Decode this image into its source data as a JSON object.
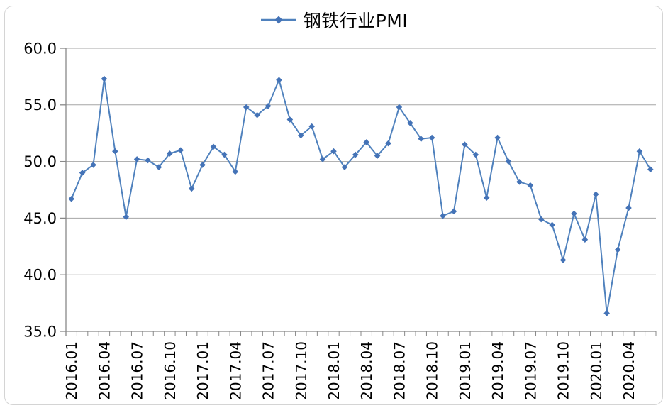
{
  "chart_data": {
    "type": "line",
    "title": "",
    "legend": {
      "label": "钢铁行业PMI",
      "position": "top-center"
    },
    "x": [
      "2016.01",
      "2016.02",
      "2016.03",
      "2016.04",
      "2016.05",
      "2016.06",
      "2016.07",
      "2016.08",
      "2016.09",
      "2016.10",
      "2016.11",
      "2016.12",
      "2017.01",
      "2017.02",
      "2017.03",
      "2017.04",
      "2017.05",
      "2017.06",
      "2017.07",
      "2017.08",
      "2017.09",
      "2017.10",
      "2017.11",
      "2017.12",
      "2018.01",
      "2018.02",
      "2018.03",
      "2018.04",
      "2018.05",
      "2018.06",
      "2018.07",
      "2018.08",
      "2018.09",
      "2018.10",
      "2018.11",
      "2018.12",
      "2019.01",
      "2019.02",
      "2019.03",
      "2019.04",
      "2019.05",
      "2019.06",
      "2019.07",
      "2019.08",
      "2019.09",
      "2019.10",
      "2019.11",
      "2019.12",
      "2020.01",
      "2020.02",
      "2020.03",
      "2020.04",
      "2020.05",
      "2020.06"
    ],
    "series": [
      {
        "name": "钢铁行业PMI",
        "values": [
          46.7,
          49.0,
          49.7,
          57.3,
          50.9,
          45.1,
          50.2,
          50.1,
          49.5,
          50.7,
          51.0,
          47.6,
          49.7,
          51.3,
          50.6,
          49.1,
          54.8,
          54.1,
          54.9,
          57.2,
          53.7,
          52.3,
          53.1,
          50.2,
          50.9,
          49.5,
          50.6,
          51.7,
          50.5,
          51.6,
          54.8,
          53.4,
          52.0,
          52.1,
          45.2,
          45.6,
          51.5,
          50.6,
          46.8,
          52.1,
          50.0,
          48.2,
          47.9,
          44.9,
          44.4,
          41.3,
          45.4,
          43.1,
          47.1,
          36.6,
          42.2,
          45.9,
          50.9,
          49.3
        ]
      }
    ],
    "ylim": [
      35.0,
      60.0
    ],
    "y_ticks": [
      35.0,
      40.0,
      45.0,
      50.0,
      55.0,
      60.0
    ],
    "y_tick_labels": [
      "35.0",
      "40.0",
      "45.0",
      "50.0",
      "55.0",
      "60.0"
    ],
    "x_label_every": 3,
    "x_label_rotation": -90,
    "grid": "horizontal-only",
    "marker": "diamond",
    "colors": {
      "series": "#4F81BD",
      "marker": "#4473B7",
      "gridline": "#A6A6A6",
      "axis": "#898989",
      "text": "#000000",
      "chart_border": "#D4D4D4",
      "background": "#FFFFFF"
    }
  }
}
